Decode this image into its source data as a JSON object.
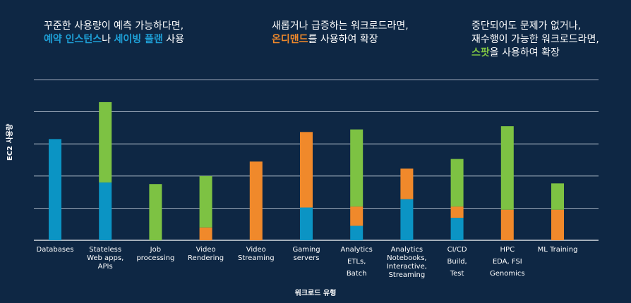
{
  "headlines": [
    {
      "line1": "꾸준한 사용량이 예측 가능하다면,",
      "line2": [
        {
          "text": "예약 인스턴스",
          "color": "#1e9fd6"
        },
        {
          "text": "나 ",
          "color": ""
        },
        {
          "text": "세이빙 플랜",
          "color": "#1e9fd6"
        },
        {
          "text": " 사용",
          "color": ""
        }
      ]
    },
    {
      "line1": "새롭거나 급증하는 워크로드라면,",
      "line2": [
        {
          "text": "온디맨드",
          "color": "#f0892b"
        },
        {
          "text": "를 사용하여 확장",
          "color": ""
        }
      ]
    },
    {
      "line1": "중단되어도 문제가 없거나,",
      "line1b": "재수행이 가능한 워크로드라면,",
      "line2": [
        {
          "text": "스팟",
          "color": "#7dc243"
        },
        {
          "text": "을 사용하여 확장",
          "color": ""
        }
      ]
    }
  ],
  "chart_data": {
    "type": "bar",
    "stacked": true,
    "ylabel": "EC2 사용량",
    "xlabel": "워크로드 유형",
    "ylim": [
      0,
      5
    ],
    "grid": true,
    "categories": [
      [
        "Databases"
      ],
      [
        "Stateless",
        "Web apps,",
        "APIs"
      ],
      [
        "Job",
        "processing"
      ],
      [
        "Video",
        "Rendering"
      ],
      [
        "Video",
        "Streaming"
      ],
      [
        "Gaming",
        "servers"
      ],
      [
        "Analytics",
        "ETLs,",
        "Batch"
      ],
      [
        "Analytics",
        "Notebooks,",
        "Interactive,",
        "Streaming"
      ],
      [
        "CI/CD",
        "Build,",
        "Test"
      ],
      [
        "HPC",
        "EDA, FSI",
        "Genomics"
      ],
      [
        "ML Training"
      ]
    ],
    "series": [
      {
        "color": "#0b94c4",
        "values": [
          3.15,
          1.8,
          0,
          0,
          0,
          1.02,
          0.45,
          1.28,
          0.7,
          0,
          0
        ]
      },
      {
        "color": "#f0892b",
        "values": [
          0,
          0,
          0,
          0.4,
          2.45,
          2.35,
          0.6,
          0.95,
          0.35,
          0.95,
          0.95
        ]
      },
      {
        "color": "#7dc243",
        "values": [
          0,
          2.5,
          1.75,
          1.6,
          0,
          0,
          2.4,
          0,
          1.48,
          2.6,
          0.82
        ]
      }
    ]
  }
}
